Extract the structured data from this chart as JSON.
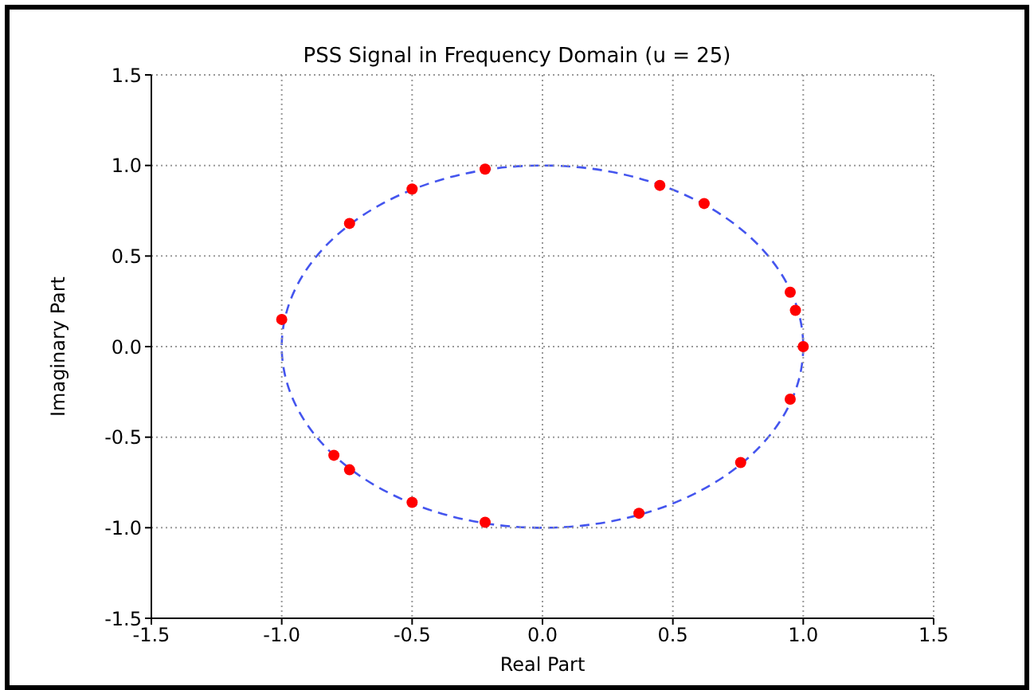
{
  "chart_data": {
    "type": "scatter",
    "title": "PSS Signal in Frequency Domain (u = 25)",
    "xlabel": "Real Part",
    "ylabel": "Imaginary Part",
    "xlim": [
      -1.5,
      1.5
    ],
    "xticks": [
      -1.5,
      {
        "value": -1,
        "label": "-1.0"
      },
      -0.5,
      {
        "value": 0,
        "label": "0.0"
      },
      0.5,
      {
        "value": 1,
        "label": "1.0"
      },
      1.5
    ],
    "ylim": [
      -1.5,
      1.5
    ],
    "yticks": [
      -1.5,
      {
        "value": -1,
        "label": "-1.0"
      },
      -0.5,
      {
        "value": 0,
        "label": "0.0"
      },
      0.5,
      {
        "value": 1,
        "label": "1.0"
      },
      1.5
    ],
    "grid": true,
    "series": [
      {
        "color": "#ff0000",
        "marker": "circle",
        "x": [
          -1.0,
          -0.8,
          -0.74,
          -0.74,
          -0.5,
          -0.5,
          -0.22,
          -0.22,
          0.45,
          0.62,
          0.95,
          0.97,
          1.0,
          0.95,
          0.76,
          0.37
        ],
        "values": [
          0.15,
          -0.6,
          -0.68,
          0.68,
          0.87,
          -0.86,
          0.98,
          -0.97,
          0.89,
          0.79,
          0.3,
          0.2,
          0.0,
          -0.29,
          -0.64,
          -0.92
        ]
      }
    ]
  }
}
